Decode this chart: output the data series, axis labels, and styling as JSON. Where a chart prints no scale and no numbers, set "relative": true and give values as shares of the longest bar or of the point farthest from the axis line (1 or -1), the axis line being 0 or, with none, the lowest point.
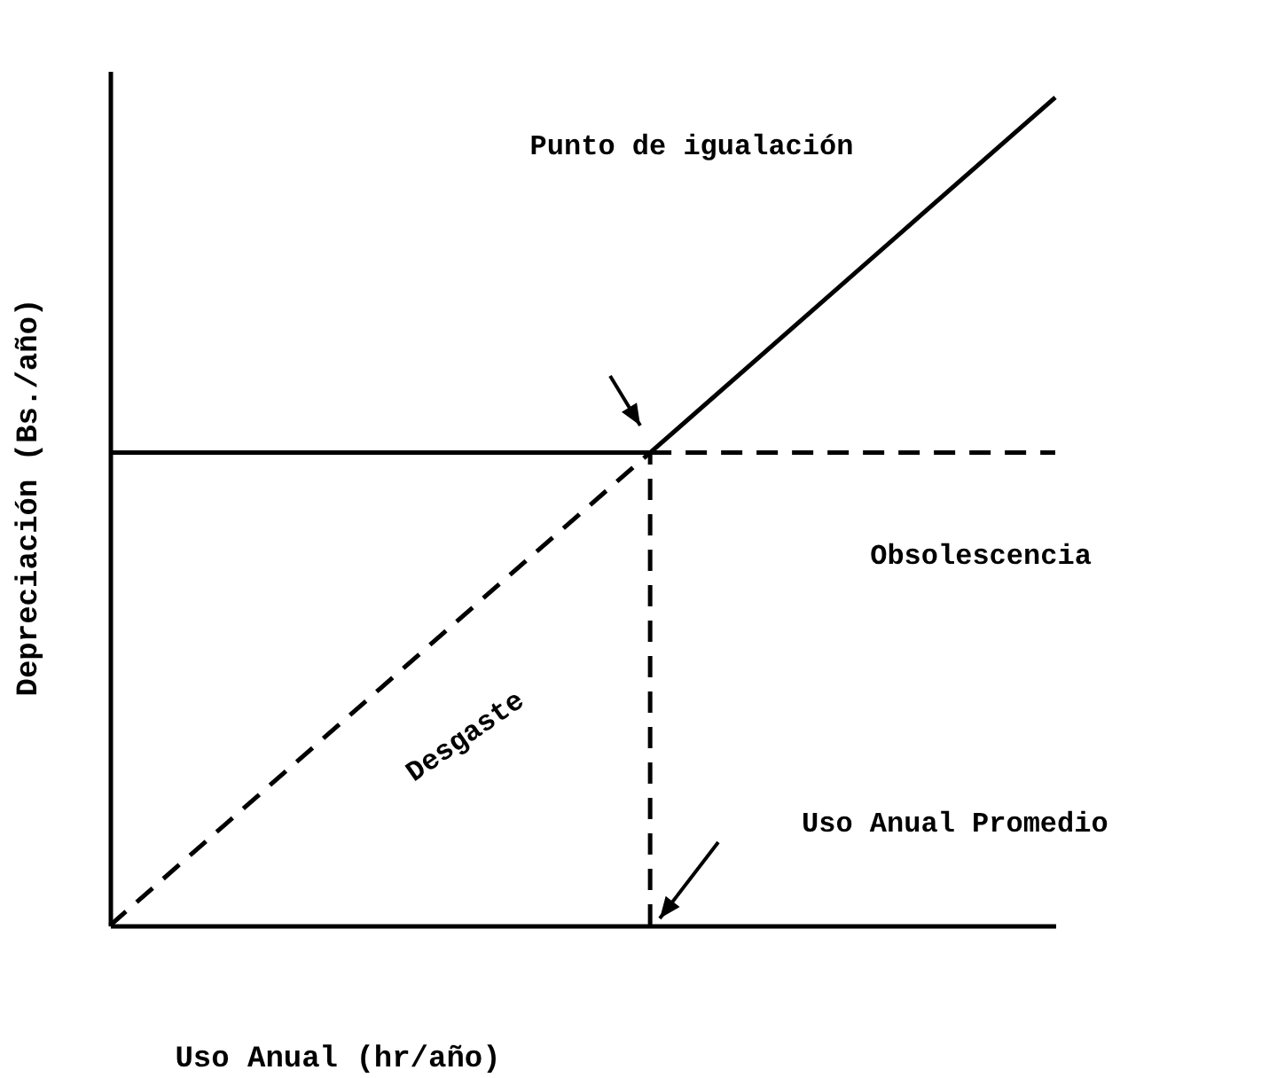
{
  "chart_data": {
    "type": "line",
    "relative": true,
    "xlabel": "Uso Anual (hr/año)",
    "ylabel": "Depreciación (Bs./año)",
    "categories": [
      null,
      null,
      null,
      null,
      null,
      null,
      null,
      null
    ],
    "series": [
      {
        "color": "#000000",
        "line_style": "dashed",
        "values": [
          0,
          0.143,
          0.286,
          0.429,
          0.571,
          null,
          null,
          null
        ]
      },
      {
        "color": "#000000",
        "line_style": "solid",
        "values": [
          null,
          null,
          null,
          null,
          0.571,
          0.714,
          0.857,
          1
        ]
      },
      {
        "color": "#000000",
        "line_style": "solid",
        "values": [
          0.571,
          0.571,
          0.571,
          0.571,
          0.571,
          null,
          null,
          null
        ]
      },
      {
        "color": "#000000",
        "line_style": "dashed",
        "values": [
          null,
          null,
          null,
          null,
          0.571,
          0.571,
          0.571,
          0.571
        ]
      }
    ],
    "annotations": [
      "Punto de igualación",
      "Obsolescencia",
      "Desgaste",
      "Uso Anual Promedio"
    ]
  }
}
